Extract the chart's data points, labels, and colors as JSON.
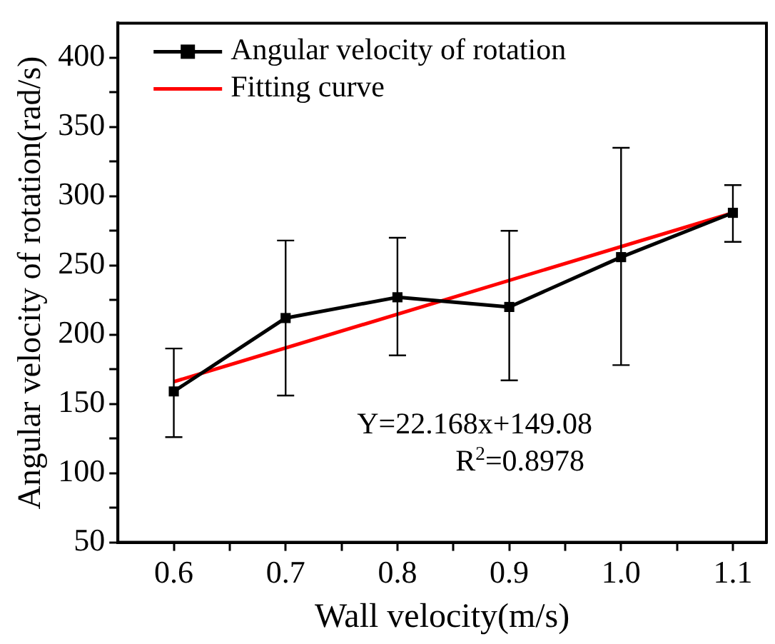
{
  "chart_data": {
    "type": "line",
    "xlabel": "Wall velocity(m/s)",
    "ylabel": "Angular velocity of rotation(rad/s)",
    "x": [
      0.6,
      0.7,
      0.8,
      0.9,
      1.0,
      1.1
    ],
    "series": [
      {
        "name": "Angular velocity of rotation",
        "color": "#000000",
        "marker": "square",
        "values": [
          159,
          212,
          227,
          220,
          256,
          288
        ],
        "errors": [
          [
            126,
            190
          ],
          [
            156,
            268
          ],
          [
            185,
            270
          ],
          [
            167,
            275
          ],
          [
            178,
            335
          ],
          [
            267,
            308
          ]
        ]
      },
      {
        "name": "Fitting curve",
        "color": "#ff0000",
        "marker": "none",
        "x": [
          0.6,
          1.1
        ],
        "values": [
          166,
          288
        ]
      }
    ],
    "xlim": [
      0.55,
      1.13
    ],
    "xticks": [
      0.6,
      {
        "value": 0.65,
        "label": null
      },
      0.7,
      {
        "value": 0.75,
        "label": null
      },
      0.8,
      {
        "value": 0.85,
        "label": null
      },
      0.9,
      {
        "value": 0.95,
        "label": null
      },
      {
        "value": 1,
        "label": "1.0"
      },
      {
        "value": 1.05,
        "label": null
      },
      1.1
    ],
    "ylim": [
      50,
      425
    ],
    "yticks": [
      50,
      {
        "value": 75,
        "label": null
      },
      100,
      {
        "value": 125,
        "label": null
      },
      150,
      {
        "value": 175,
        "label": null
      },
      200,
      {
        "value": 225,
        "label": null
      },
      250,
      {
        "value": 275,
        "label": null
      },
      300,
      {
        "value": 325,
        "label": null
      },
      350,
      {
        "value": 375,
        "label": null
      },
      400
    ],
    "legend": "top left",
    "annotations": [
      "Y=22.168x+149.08",
      "R$^{2}$=0.8978"
    ]
  }
}
